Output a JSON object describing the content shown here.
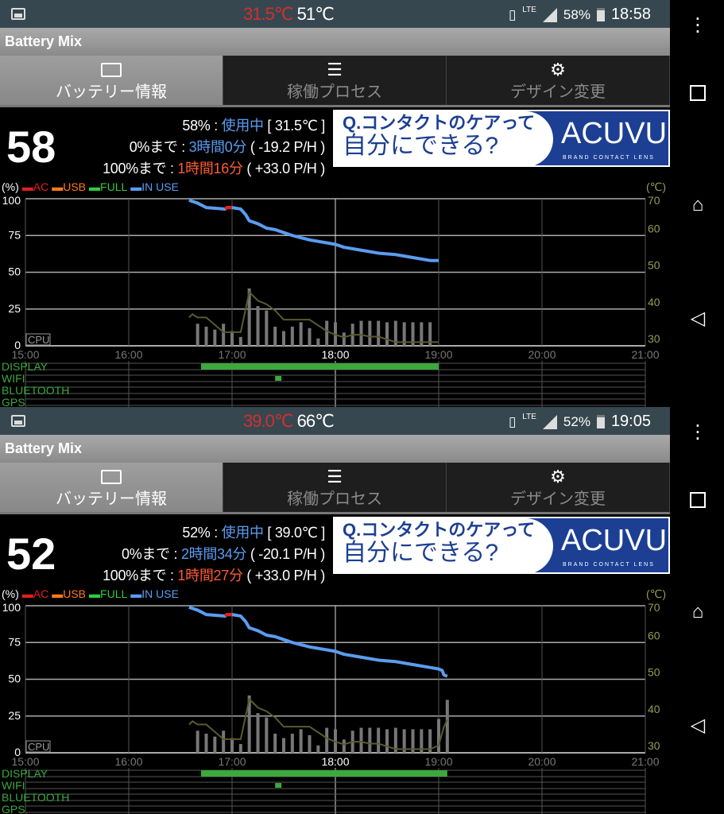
{
  "panels": [
    {
      "status": {
        "battery_temp": "31.5℃",
        "cpu_temp": "51℃",
        "network": "LTE",
        "battery_pct": "58%",
        "clock": "18:58"
      },
      "app_title": "Battery Mix",
      "tabs": [
        {
          "label": "バッテリー情報",
          "icon": "battery-icon",
          "active": true
        },
        {
          "label": "稼働プロセス",
          "icon": "list-icon"
        },
        {
          "label": "デザイン変更",
          "icon": "gear-icon"
        }
      ],
      "level": "58",
      "info": {
        "line1_prefix": "58% : ",
        "line1_state": "使用中",
        "line1_temp": " [ 31.5℃ ]",
        "line2_prefix": "0%まで : ",
        "line2_time": "3時間0分",
        "line2_rate": " ( -19.2 P/H )",
        "line3_prefix": "100%まで : ",
        "line3_time": "1時間16分",
        "line3_rate": " ( +33.0 P/H )"
      },
      "chart_data": {
        "type": "line",
        "y_unit_left": "(%)",
        "y_unit_right": "(℃)",
        "legend": [
          {
            "label": "AC",
            "color": "#e02020"
          },
          {
            "label": "USB",
            "color": "#ff7a1a"
          },
          {
            "label": "FULL",
            "color": "#2ecc40"
          },
          {
            "label": "IN USE",
            "color": "#5b9cf0"
          }
        ],
        "x_ticks": [
          "15:00",
          "16:00",
          "17:00",
          "18:00",
          "19:00",
          "20:00",
          "21:00"
        ],
        "y_ticks_left": [
          "100",
          "75",
          "50",
          "25",
          "0"
        ],
        "y_ticks_right": [
          "70",
          "60",
          "50",
          "40",
          "30"
        ],
        "ylim_left": [
          0,
          100
        ],
        "ylim_right": [
          30,
          70
        ],
        "cpu_label": "CPU",
        "battery": [
          [
            "16:35",
            99
          ],
          [
            "16:40",
            97
          ],
          [
            "16:45",
            94
          ],
          [
            "16:56",
            93
          ],
          [
            "16:57",
            94
          ],
          [
            "17:00",
            94
          ],
          [
            "17:05",
            93
          ],
          [
            "17:08",
            89
          ],
          [
            "17:10",
            85
          ],
          [
            "17:15",
            83
          ],
          [
            "17:20",
            80
          ],
          [
            "17:25",
            79
          ],
          [
            "17:30",
            77
          ],
          [
            "17:35",
            75
          ],
          [
            "17:45",
            72
          ],
          [
            "17:55",
            70
          ],
          [
            "18:00",
            69
          ],
          [
            "18:05",
            67
          ],
          [
            "18:15",
            65
          ],
          [
            "18:25",
            63
          ],
          [
            "18:35",
            62
          ],
          [
            "18:45",
            60
          ],
          [
            "18:55",
            58
          ],
          [
            "19:00",
            58
          ]
        ],
        "ac_segment": [
          "16:56",
          "17:00"
        ],
        "cpu_bars": {
          "start": "16:40",
          "step_min": 5,
          "values": [
            15,
            13,
            11,
            15,
            10,
            6,
            39,
            27,
            24,
            13,
            10,
            13,
            16,
            12,
            5,
            17,
            16,
            9,
            15,
            17,
            17,
            17,
            16,
            17,
            16,
            16,
            16,
            16
          ]
        },
        "temperature": [
          [
            "16:35",
            37.7
          ],
          [
            "16:37",
            38.6
          ],
          [
            "16:40",
            37.7
          ],
          [
            "16:45",
            37.7
          ],
          [
            "16:55",
            33.7
          ],
          [
            "17:05",
            33.7
          ],
          [
            "17:10",
            44.6
          ],
          [
            "17:15",
            42.3
          ],
          [
            "17:20",
            41.3
          ],
          [
            "17:25",
            39.6
          ],
          [
            "17:30",
            37.1
          ],
          [
            "17:45",
            37.1
          ],
          [
            "17:55",
            34
          ],
          [
            "18:00",
            33
          ],
          [
            "18:05",
            32.3
          ],
          [
            "18:10",
            33
          ],
          [
            "18:15",
            33
          ],
          [
            "18:20",
            32.5
          ],
          [
            "18:25",
            32.5
          ],
          [
            "18:35",
            31
          ],
          [
            "19:00",
            31
          ]
        ],
        "tracks": [
          {
            "label": "DISPLAY",
            "on": [
              [
                "16:42",
                "19:00"
              ]
            ]
          },
          {
            "label": "WIFI",
            "on": [
              [
                "17:25",
                "17:28"
              ]
            ]
          },
          {
            "label": "BLUETOOTH",
            "on": []
          },
          {
            "label": "GPS",
            "on": []
          }
        ],
        "highlight_tick": "18:00"
      }
    },
    {
      "status": {
        "battery_temp": "39.0℃",
        "cpu_temp": "66℃",
        "network": "LTE",
        "battery_pct": "52%",
        "clock": "19:05"
      },
      "app_title": "Battery Mix",
      "tabs": [
        {
          "label": "バッテリー情報",
          "icon": "battery-icon",
          "active": true
        },
        {
          "label": "稼働プロセス",
          "icon": "list-icon"
        },
        {
          "label": "デザイン変更",
          "icon": "gear-icon"
        }
      ],
      "level": "52",
      "info": {
        "line1_prefix": "52% : ",
        "line1_state": "使用中",
        "line1_temp": " [ 39.0℃ ]",
        "line2_prefix": "0%まで : ",
        "line2_time": "2時間34分",
        "line2_rate": " ( -20.1 P/H )",
        "line3_prefix": "100%まで : ",
        "line3_time": "1時間27分",
        "line3_rate": " ( +33.0 P/H )"
      },
      "chart_data": {
        "type": "line",
        "y_unit_left": "(%)",
        "y_unit_right": "(℃)",
        "legend": [
          {
            "label": "AC",
            "color": "#e02020"
          },
          {
            "label": "USB",
            "color": "#ff7a1a"
          },
          {
            "label": "FULL",
            "color": "#2ecc40"
          },
          {
            "label": "IN USE",
            "color": "#5b9cf0"
          }
        ],
        "x_ticks": [
          "15:00",
          "16:00",
          "17:00",
          "18:00",
          "19:00",
          "20:00",
          "21:00"
        ],
        "y_ticks_left": [
          "100",
          "75",
          "50",
          "25",
          "0"
        ],
        "y_ticks_right": [
          "70",
          "60",
          "50",
          "40",
          "30"
        ],
        "ylim_left": [
          0,
          100
        ],
        "ylim_right": [
          30,
          70
        ],
        "cpu_label": "CPU",
        "battery": [
          [
            "16:35",
            99
          ],
          [
            "16:40",
            97
          ],
          [
            "16:45",
            94
          ],
          [
            "16:56",
            93
          ],
          [
            "16:57",
            94
          ],
          [
            "17:00",
            94
          ],
          [
            "17:05",
            93
          ],
          [
            "17:08",
            89
          ],
          [
            "17:10",
            85
          ],
          [
            "17:15",
            83
          ],
          [
            "17:20",
            80
          ],
          [
            "17:25",
            79
          ],
          [
            "17:30",
            77
          ],
          [
            "17:35",
            75
          ],
          [
            "17:45",
            72
          ],
          [
            "17:55",
            70
          ],
          [
            "18:00",
            69
          ],
          [
            "18:05",
            67
          ],
          [
            "18:15",
            65
          ],
          [
            "18:25",
            63
          ],
          [
            "18:35",
            62
          ],
          [
            "18:45",
            60
          ],
          [
            "18:55",
            58
          ],
          [
            "19:00",
            57
          ],
          [
            "19:02",
            56
          ],
          [
            "19:03",
            53
          ],
          [
            "19:05",
            52
          ]
        ],
        "ac_segment": [
          "16:56",
          "17:00"
        ],
        "cpu_bars": {
          "start": "16:40",
          "step_min": 5,
          "values": [
            15,
            13,
            11,
            15,
            10,
            6,
            39,
            27,
            24,
            13,
            10,
            13,
            16,
            12,
            5,
            17,
            16,
            9,
            15,
            17,
            17,
            17,
            16,
            17,
            16,
            16,
            16,
            16,
            23,
            36
          ]
        },
        "temperature": [
          [
            "16:35",
            37.7
          ],
          [
            "16:37",
            38.6
          ],
          [
            "16:40",
            37.7
          ],
          [
            "16:45",
            37.7
          ],
          [
            "16:55",
            33.7
          ],
          [
            "17:05",
            33.7
          ],
          [
            "17:10",
            44.6
          ],
          [
            "17:15",
            42.3
          ],
          [
            "17:20",
            41.3
          ],
          [
            "17:25",
            39.6
          ],
          [
            "17:30",
            37.1
          ],
          [
            "17:45",
            37.1
          ],
          [
            "17:55",
            34
          ],
          [
            "18:00",
            33
          ],
          [
            "18:05",
            32.3
          ],
          [
            "18:10",
            33
          ],
          [
            "18:15",
            33
          ],
          [
            "18:20",
            32.5
          ],
          [
            "18:25",
            32.5
          ],
          [
            "18:35",
            31
          ],
          [
            "18:55",
            31
          ],
          [
            "19:00",
            32
          ],
          [
            "19:03",
            37
          ],
          [
            "19:05",
            39
          ]
        ],
        "tracks": [
          {
            "label": "DISPLAY",
            "on": [
              [
                "16:42",
                "19:05"
              ]
            ]
          },
          {
            "label": "WIFI",
            "on": [
              [
                "17:25",
                "17:28"
              ]
            ]
          },
          {
            "label": "BLUETOOTH",
            "on": []
          },
          {
            "label": "GPS",
            "on": []
          }
        ],
        "highlight_tick": "18:00"
      }
    }
  ],
  "nav": {
    "menu_icon": "more-vert-icon",
    "recents_icon": "square-icon",
    "home_icon": "home-icon",
    "back_icon": "back-icon"
  }
}
